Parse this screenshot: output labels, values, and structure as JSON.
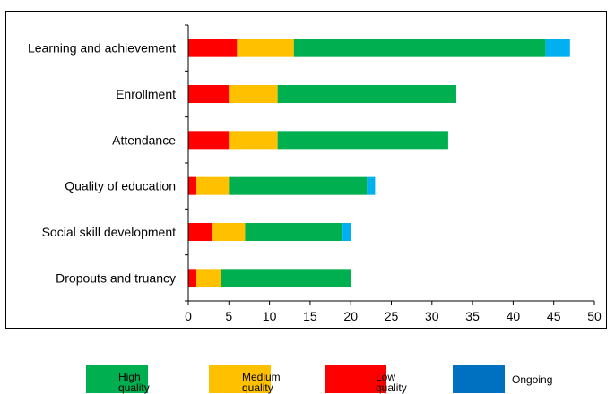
{
  "colors": {
    "high": "#00B050",
    "medium": "#FFC000",
    "low": "#FF0000",
    "ongoing": "#00B0F0",
    "ongoing_legend": "#0070C0"
  },
  "chart_data": {
    "type": "bar",
    "orientation": "horizontal",
    "stacked": true,
    "categories": [
      "Learning and achievement",
      "Enrollment",
      "Attendance",
      "Quality of education",
      "Social skill development",
      "Dropouts and truancy"
    ],
    "series": [
      {
        "name": "Low quality",
        "color": "#FF0000",
        "values": [
          6,
          5,
          5,
          1,
          3,
          1
        ]
      },
      {
        "name": "Medium quality",
        "color": "#FFC000",
        "values": [
          7,
          6,
          6,
          4,
          4,
          3
        ]
      },
      {
        "name": "High quality",
        "color": "#00B050",
        "values": [
          31,
          22,
          21,
          17,
          12,
          16
        ]
      },
      {
        "name": "Ongoing",
        "color": "#00B0F0",
        "values": [
          3,
          0,
          0,
          1,
          1,
          0
        ]
      }
    ],
    "xlim": [
      0,
      50
    ],
    "xticks": [
      "0",
      "5",
      "10",
      "15",
      "20",
      "25",
      "30",
      "35",
      "40",
      "45",
      "50"
    ],
    "grid": false,
    "legend_position": "bottom"
  },
  "legend": {
    "items": [
      {
        "line1": "High",
        "line2": "quality"
      },
      {
        "line1": "Medium",
        "line2": "quality"
      },
      {
        "line1": "Low",
        "line2": "quality"
      },
      {
        "line1": "Ongoing",
        "line2": ""
      }
    ]
  }
}
